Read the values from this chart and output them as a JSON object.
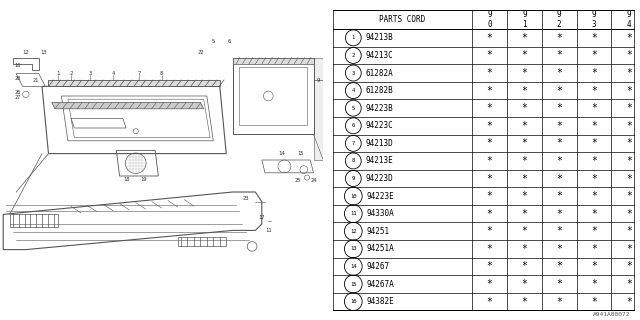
{
  "bg_color": "#ffffff",
  "parts": [
    {
      "num": "1",
      "code": "94213B"
    },
    {
      "num": "2",
      "code": "94213C"
    },
    {
      "num": "3",
      "code": "61282A"
    },
    {
      "num": "4",
      "code": "61282B"
    },
    {
      "num": "5",
      "code": "94223B"
    },
    {
      "num": "6",
      "code": "94223C"
    },
    {
      "num": "7",
      "code": "94213D"
    },
    {
      "num": "8",
      "code": "94213E"
    },
    {
      "num": "9",
      "code": "94223D"
    },
    {
      "num": "10",
      "code": "94223E"
    },
    {
      "num": "11",
      "code": "94330A"
    },
    {
      "num": "12",
      "code": "94251"
    },
    {
      "num": "13",
      "code": "94251A"
    },
    {
      "num": "14",
      "code": "94267"
    },
    {
      "num": "15",
      "code": "94267A"
    },
    {
      "num": "16",
      "code": "94382E"
    }
  ],
  "col_headers": [
    "PARTS CORD",
    "9\n0",
    "9\n1",
    "9\n2",
    "9\n3",
    "9\n4"
  ],
  "footer": "A941A00072",
  "lc": "#999999",
  "lc_dark": "#555555"
}
